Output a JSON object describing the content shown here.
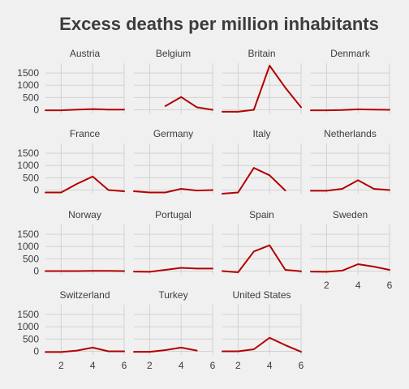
{
  "chart_data": {
    "type": "line",
    "title": "Excess deaths per million inhabitants",
    "xlabel": "",
    "ylabel": "",
    "xlim": [
      1,
      6
    ],
    "ylim": [
      -150,
      1900
    ],
    "x_ticks": [
      2,
      4,
      6
    ],
    "y_ticks": [
      0,
      500,
      1000,
      1500
    ],
    "grid": true,
    "legend": "none",
    "series_color": "#b30000",
    "panels": [
      {
        "name": "Austria",
        "x": [
          1,
          2,
          3,
          4,
          5,
          6
        ],
        "y": [
          -20,
          -20,
          10,
          30,
          10,
          5
        ]
      },
      {
        "name": "Belgium",
        "x": [
          3,
          4,
          5,
          6
        ],
        "y": [
          150,
          520,
          100,
          0
        ]
      },
      {
        "name": "Britain",
        "x": [
          1,
          2,
          3,
          4,
          5,
          6
        ],
        "y": [
          -80,
          -80,
          0,
          1800,
          900,
          100
        ]
      },
      {
        "name": "Denmark",
        "x": [
          1,
          2,
          3,
          4,
          5,
          6
        ],
        "y": [
          -20,
          -20,
          -10,
          20,
          10,
          0
        ]
      },
      {
        "name": "France",
        "x": [
          1,
          2,
          3,
          4,
          5,
          6
        ],
        "y": [
          -100,
          -100,
          250,
          550,
          0,
          -50
        ]
      },
      {
        "name": "Germany",
        "x": [
          1,
          2,
          3,
          4,
          5,
          6
        ],
        "y": [
          -50,
          -100,
          -100,
          50,
          -20,
          0
        ]
      },
      {
        "name": "Italy",
        "x": [
          1,
          2,
          3,
          4,
          5
        ],
        "y": [
          -150,
          -100,
          900,
          600,
          -20
        ]
      },
      {
        "name": "Netherlands",
        "x": [
          1,
          2,
          3,
          4,
          5,
          6
        ],
        "y": [
          -30,
          -30,
          50,
          400,
          50,
          0
        ]
      },
      {
        "name": "Norway",
        "x": [
          1,
          2,
          3,
          4,
          5,
          6
        ],
        "y": [
          0,
          0,
          0,
          10,
          10,
          0
        ]
      },
      {
        "name": "Portugal",
        "x": [
          1,
          2,
          3,
          4,
          5,
          6
        ],
        "y": [
          -20,
          -30,
          50,
          130,
          100,
          100
        ]
      },
      {
        "name": "Spain",
        "x": [
          1,
          2,
          3,
          4,
          5,
          6
        ],
        "y": [
          0,
          -50,
          800,
          1050,
          50,
          -10
        ]
      },
      {
        "name": "Sweden",
        "x": [
          1,
          2,
          3,
          4,
          5,
          6
        ],
        "y": [
          -20,
          -30,
          20,
          280,
          180,
          50
        ]
      },
      {
        "name": "Switzerland",
        "x": [
          1,
          2,
          3,
          4,
          5,
          6
        ],
        "y": [
          -30,
          -30,
          30,
          150,
          0,
          0
        ]
      },
      {
        "name": "Turkey",
        "x": [
          1,
          2,
          3,
          4,
          5
        ],
        "y": [
          -20,
          -20,
          50,
          150,
          30
        ]
      },
      {
        "name": "United States",
        "x": [
          1,
          2,
          3,
          4,
          5,
          6
        ],
        "y": [
          0,
          0,
          80,
          550,
          250,
          -20
        ]
      }
    ]
  }
}
